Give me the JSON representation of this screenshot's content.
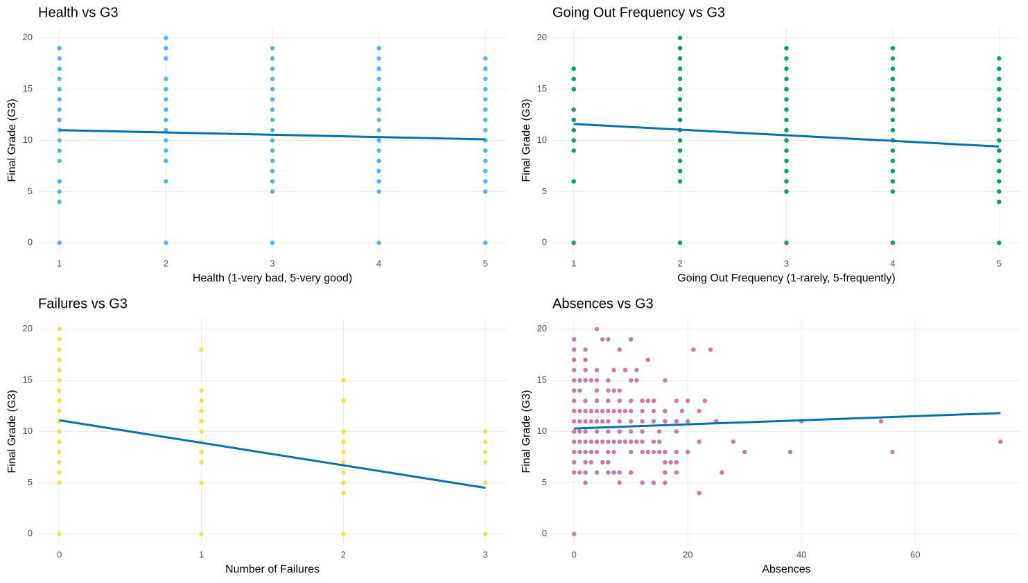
{
  "chart_data": [
    {
      "type": "scatter",
      "title": "Health vs G3",
      "x_label": "Health (1-very bad, 5-very good)",
      "y_label": "Final Grade (G3)",
      "x": [
        1,
        1,
        1,
        1,
        1,
        1,
        1,
        1,
        1,
        1,
        1,
        1,
        1,
        1,
        1,
        1,
        2,
        2,
        2,
        2,
        2,
        2,
        2,
        2,
        2,
        2,
        2,
        2,
        2,
        2,
        3,
        3,
        3,
        3,
        3,
        3,
        3,
        3,
        3,
        3,
        3,
        3,
        3,
        3,
        3,
        3,
        4,
        4,
        4,
        4,
        4,
        4,
        4,
        4,
        4,
        4,
        4,
        4,
        4,
        4,
        4,
        4,
        5,
        5,
        5,
        5,
        5,
        5,
        5,
        5,
        5,
        5,
        5,
        5,
        5,
        5,
        5
      ],
      "values": [
        0,
        4,
        5,
        6,
        8,
        9,
        10,
        11,
        12,
        13,
        14,
        15,
        16,
        17,
        18,
        19,
        0,
        6,
        8,
        9,
        10,
        11,
        12,
        13,
        14,
        15,
        16,
        18,
        19,
        20,
        0,
        5,
        6,
        7,
        8,
        9,
        10,
        11,
        12,
        13,
        14,
        15,
        16,
        17,
        18,
        19,
        0,
        5,
        6,
        7,
        8,
        9,
        10,
        11,
        12,
        13,
        14,
        15,
        16,
        17,
        18,
        19,
        0,
        5,
        6,
        7,
        8,
        9,
        10,
        11,
        12,
        13,
        14,
        15,
        16,
        17,
        18
      ],
      "color": "#56b4e9",
      "fit": {
        "x": [
          1,
          5
        ],
        "values": [
          11.0,
          10.1
        ],
        "color": "#0072b2"
      },
      "xlim": [
        0.8,
        5.2
      ],
      "xticks": [
        1,
        2,
        3,
        4,
        5
      ],
      "ylim": [
        -1,
        21
      ],
      "yticks": [
        0,
        5,
        10,
        15,
        20
      ],
      "grid": true
    },
    {
      "type": "scatter",
      "title": "Going Out Frequency vs G3",
      "x_label": "Going Out Frequency (1-rarely, 5-frequently)",
      "y_label": "Final Grade (G3)",
      "x": [
        1,
        1,
        1,
        1,
        1,
        1,
        1,
        1,
        1,
        1,
        2,
        2,
        2,
        2,
        2,
        2,
        2,
        2,
        2,
        2,
        2,
        2,
        2,
        2,
        2,
        2,
        3,
        3,
        3,
        3,
        3,
        3,
        3,
        3,
        3,
        3,
        3,
        3,
        3,
        3,
        3,
        3,
        4,
        4,
        4,
        4,
        4,
        4,
        4,
        4,
        4,
        4,
        4,
        4,
        4,
        4,
        4,
        4,
        5,
        5,
        5,
        5,
        5,
        5,
        5,
        5,
        5,
        5,
        5,
        5,
        5,
        5,
        5,
        5
      ],
      "values": [
        0,
        6,
        9,
        10,
        11,
        12,
        13,
        15,
        16,
        17,
        0,
        6,
        7,
        8,
        9,
        10,
        11,
        12,
        13,
        14,
        15,
        16,
        17,
        18,
        19,
        20,
        0,
        5,
        6,
        7,
        8,
        9,
        10,
        11,
        12,
        13,
        14,
        15,
        16,
        17,
        18,
        19,
        0,
        5,
        6,
        7,
        8,
        9,
        10,
        11,
        12,
        13,
        14,
        15,
        16,
        17,
        18,
        19,
        0,
        4,
        5,
        6,
        7,
        8,
        9,
        10,
        11,
        12,
        13,
        14,
        15,
        16,
        17,
        18
      ],
      "color": "#009e73",
      "fit": {
        "x": [
          1,
          5
        ],
        "values": [
          11.6,
          9.4
        ],
        "color": "#0072b2"
      },
      "xlim": [
        0.8,
        5.2
      ],
      "xticks": [
        1,
        2,
        3,
        4,
        5
      ],
      "ylim": [
        -1,
        21
      ],
      "yticks": [
        0,
        5,
        10,
        15,
        20
      ],
      "grid": true
    },
    {
      "type": "scatter",
      "title": "Failures vs G3",
      "x_label": "Number of Failures",
      "y_label": "Final Grade (G3)",
      "x": [
        0,
        0,
        0,
        0,
        0,
        0,
        0,
        0,
        0,
        0,
        0,
        0,
        0,
        0,
        0,
        0,
        0,
        1,
        1,
        1,
        1,
        1,
        1,
        1,
        1,
        1,
        1,
        1,
        2,
        2,
        2,
        2,
        2,
        2,
        2,
        2,
        2,
        2,
        3,
        3,
        3,
        3,
        3,
        3
      ],
      "values": [
        0,
        5,
        6,
        7,
        8,
        9,
        10,
        11,
        12,
        13,
        14,
        15,
        16,
        17,
        18,
        19,
        20,
        0,
        5,
        7,
        8,
        9,
        10,
        11,
        12,
        13,
        14,
        18,
        0,
        4,
        5,
        6,
        7,
        8,
        9,
        10,
        13,
        15,
        0,
        5,
        7,
        8,
        9,
        10
      ],
      "color": "#f0e442",
      "fit": {
        "x": [
          0,
          3
        ],
        "values": [
          11.1,
          4.5
        ],
        "color": "#0072b2"
      },
      "xlim": [
        -0.15,
        3.15
      ],
      "xticks": [
        0,
        1,
        2,
        3
      ],
      "ylim": [
        -1,
        21
      ],
      "yticks": [
        0,
        5,
        10,
        15,
        20
      ],
      "grid": true
    },
    {
      "type": "scatter",
      "title": "Absences vs G3",
      "x_label": "Absences",
      "y_label": "Final Grade (G3)",
      "x": [
        0,
        0,
        0,
        0,
        0,
        0,
        0,
        0,
        0,
        0,
        0,
        0,
        0,
        0,
        0,
        1,
        1,
        1,
        1,
        1,
        1,
        1,
        1,
        2,
        2,
        2,
        2,
        2,
        2,
        2,
        2,
        2,
        2,
        2,
        2,
        2,
        3,
        3,
        3,
        3,
        3,
        3,
        4,
        4,
        4,
        4,
        4,
        4,
        4,
        4,
        4,
        4,
        4,
        5,
        5,
        5,
        5,
        5,
        6,
        6,
        6,
        6,
        6,
        6,
        6,
        6,
        6,
        6,
        6,
        7,
        7,
        7,
        7,
        7,
        7,
        8,
        8,
        8,
        8,
        8,
        8,
        8,
        8,
        8,
        9,
        9,
        9,
        10,
        10,
        10,
        10,
        10,
        10,
        10,
        10,
        10,
        11,
        11,
        11,
        12,
        12,
        12,
        12,
        12,
        12,
        12,
        13,
        13,
        13,
        14,
        14,
        14,
        14,
        14,
        14,
        15,
        15,
        15,
        16,
        16,
        16,
        16,
        16,
        16,
        16,
        17,
        18,
        18,
        18,
        18,
        18,
        18,
        19,
        20,
        20,
        20,
        21,
        22,
        22,
        22,
        23,
        24,
        25,
        26,
        28,
        30,
        38,
        40,
        54,
        56,
        75
      ],
      "values": [
        0,
        6,
        7,
        8,
        9,
        10,
        11,
        12,
        13,
        14,
        15,
        16,
        17,
        18,
        19,
        6,
        8,
        9,
        10,
        11,
        12,
        14,
        15,
        5,
        6,
        7,
        8,
        9,
        10,
        11,
        12,
        13,
        15,
        16,
        17,
        18,
        7,
        8,
        9,
        11,
        12,
        15,
        6,
        8,
        9,
        10,
        11,
        12,
        13,
        14,
        15,
        16,
        20,
        7,
        9,
        11,
        12,
        19,
        6,
        7,
        8,
        9,
        10,
        11,
        12,
        13,
        14,
        15,
        19,
        6,
        8,
        9,
        12,
        14,
        16,
        5,
        6,
        9,
        10,
        11,
        12,
        13,
        14,
        18,
        9,
        12,
        16,
        6,
        8,
        9,
        10,
        11,
        12,
        13,
        15,
        19,
        9,
        15,
        16,
        5,
        8,
        9,
        10,
        11,
        12,
        13,
        8,
        13,
        17,
        5,
        8,
        9,
        11,
        12,
        13,
        8,
        9,
        10,
        5,
        6,
        7,
        8,
        11,
        12,
        15,
        7,
        6,
        7,
        8,
        10,
        11,
        13,
        12,
        8,
        11,
        13,
        18,
        4,
        9,
        12,
        13,
        18,
        11,
        6,
        9,
        8,
        8,
        11,
        11,
        8,
        9
      ],
      "color": "#cc79a7",
      "fit": {
        "x": [
          0,
          75
        ],
        "values": [
          10.3,
          11.8
        ],
        "color": "#0072b2"
      },
      "xlim": [
        -3.8,
        78.5
      ],
      "xticks": [
        0,
        20,
        40,
        60
      ],
      "ylim": [
        -1,
        21
      ],
      "yticks": [
        0,
        5,
        10,
        15,
        20
      ],
      "grid": true
    }
  ]
}
